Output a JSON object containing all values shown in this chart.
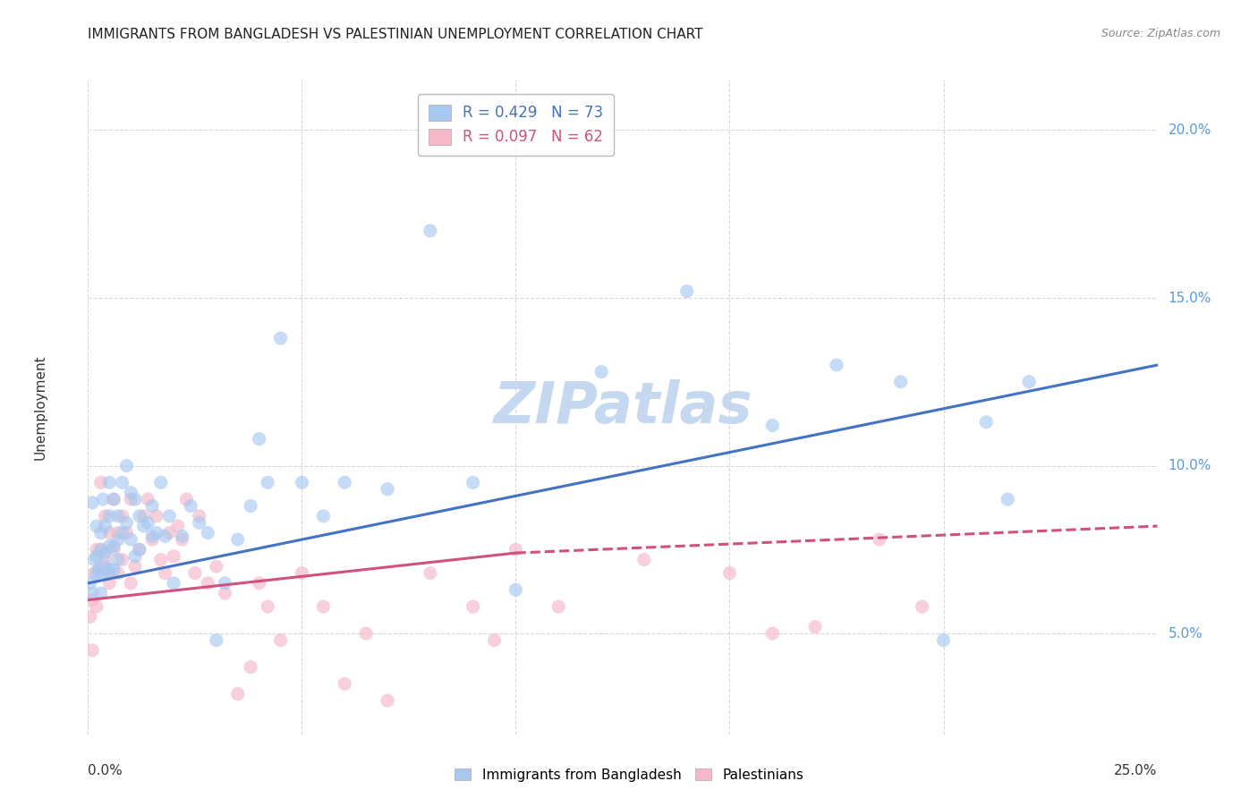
{
  "title": "IMMIGRANTS FROM BANGLADESH VS PALESTINIAN UNEMPLOYMENT CORRELATION CHART",
  "source": "Source: ZipAtlas.com",
  "ylabel": "Unemployment",
  "xlim": [
    0,
    0.25
  ],
  "ylim": [
    0.02,
    0.215
  ],
  "yticks": [
    0.05,
    0.1,
    0.15,
    0.2
  ],
  "ytick_labels": [
    "5.0%",
    "10.0%",
    "15.0%",
    "20.0%"
  ],
  "xticks": [
    0.0,
    0.05,
    0.1,
    0.15,
    0.2,
    0.25
  ],
  "legend_entries": [
    {
      "label": "R = 0.429   N = 73",
      "color": "#a8c8f0"
    },
    {
      "label": "R = 0.097   N = 62",
      "color": "#f4a7b9"
    }
  ],
  "legend_bottom": [
    "Immigrants from Bangladesh",
    "Palestinians"
  ],
  "blue_color": "#a8c8f0",
  "pink_color": "#f4b8c8",
  "blue_line_color": "#4472c4",
  "pink_line_color": "#d05080",
  "watermark": "ZIPatlas",
  "blue_scatter_x": [
    0.0005,
    0.001,
    0.001,
    0.0015,
    0.002,
    0.002,
    0.002,
    0.0025,
    0.003,
    0.003,
    0.003,
    0.003,
    0.0035,
    0.004,
    0.004,
    0.004,
    0.0045,
    0.005,
    0.005,
    0.005,
    0.005,
    0.006,
    0.006,
    0.006,
    0.007,
    0.007,
    0.007,
    0.008,
    0.008,
    0.009,
    0.009,
    0.01,
    0.01,
    0.011,
    0.011,
    0.012,
    0.012,
    0.013,
    0.014,
    0.015,
    0.015,
    0.016,
    0.017,
    0.018,
    0.019,
    0.02,
    0.022,
    0.024,
    0.026,
    0.028,
    0.03,
    0.032,
    0.035,
    0.038,
    0.04,
    0.042,
    0.045,
    0.05,
    0.055,
    0.06,
    0.07,
    0.08,
    0.09,
    0.1,
    0.12,
    0.14,
    0.16,
    0.175,
    0.19,
    0.2,
    0.21,
    0.215,
    0.22
  ],
  "blue_scatter_y": [
    0.065,
    0.089,
    0.062,
    0.072,
    0.068,
    0.082,
    0.073,
    0.069,
    0.075,
    0.08,
    0.068,
    0.062,
    0.09,
    0.07,
    0.082,
    0.074,
    0.068,
    0.085,
    0.076,
    0.069,
    0.095,
    0.09,
    0.076,
    0.069,
    0.085,
    0.078,
    0.072,
    0.08,
    0.095,
    0.1,
    0.083,
    0.092,
    0.078,
    0.09,
    0.073,
    0.075,
    0.085,
    0.082,
    0.083,
    0.079,
    0.088,
    0.08,
    0.095,
    0.079,
    0.085,
    0.065,
    0.079,
    0.088,
    0.083,
    0.08,
    0.048,
    0.065,
    0.078,
    0.088,
    0.108,
    0.095,
    0.138,
    0.095,
    0.085,
    0.095,
    0.093,
    0.17,
    0.095,
    0.063,
    0.128,
    0.152,
    0.112,
    0.13,
    0.125,
    0.048,
    0.113,
    0.09,
    0.125
  ],
  "pink_scatter_x": [
    0.0005,
    0.001,
    0.001,
    0.0015,
    0.002,
    0.002,
    0.003,
    0.003,
    0.003,
    0.004,
    0.004,
    0.005,
    0.005,
    0.005,
    0.006,
    0.006,
    0.007,
    0.007,
    0.008,
    0.008,
    0.009,
    0.01,
    0.01,
    0.011,
    0.012,
    0.013,
    0.014,
    0.015,
    0.016,
    0.017,
    0.018,
    0.019,
    0.02,
    0.021,
    0.022,
    0.023,
    0.025,
    0.026,
    0.028,
    0.03,
    0.032,
    0.035,
    0.038,
    0.04,
    0.042,
    0.045,
    0.05,
    0.055,
    0.06,
    0.065,
    0.07,
    0.08,
    0.09,
    0.095,
    0.1,
    0.11,
    0.13,
    0.15,
    0.16,
    0.17,
    0.185,
    0.195
  ],
  "pink_scatter_y": [
    0.055,
    0.06,
    0.045,
    0.068,
    0.058,
    0.075,
    0.075,
    0.095,
    0.07,
    0.072,
    0.085,
    0.08,
    0.065,
    0.068,
    0.09,
    0.075,
    0.08,
    0.068,
    0.085,
    0.072,
    0.08,
    0.09,
    0.065,
    0.07,
    0.075,
    0.085,
    0.09,
    0.078,
    0.085,
    0.072,
    0.068,
    0.08,
    0.073,
    0.082,
    0.078,
    0.09,
    0.068,
    0.085,
    0.065,
    0.07,
    0.062,
    0.032,
    0.04,
    0.065,
    0.058,
    0.048,
    0.068,
    0.058,
    0.035,
    0.05,
    0.03,
    0.068,
    0.058,
    0.048,
    0.075,
    0.058,
    0.072,
    0.068,
    0.05,
    0.052,
    0.078,
    0.058
  ],
  "blue_line_x0": 0.0,
  "blue_line_x1": 0.25,
  "blue_line_y0": 0.065,
  "blue_line_y1": 0.13,
  "pink_line_x0": 0.0,
  "pink_line_x1": 0.1,
  "pink_line_x1_dash": 0.25,
  "pink_line_y0": 0.06,
  "pink_line_y1": 0.074,
  "pink_line_y1_dash": 0.082,
  "background_color": "#ffffff",
  "grid_color": "#d8d8d8",
  "title_fontsize": 11,
  "watermark_color": "#c5d8f0",
  "watermark_fontsize": 46
}
